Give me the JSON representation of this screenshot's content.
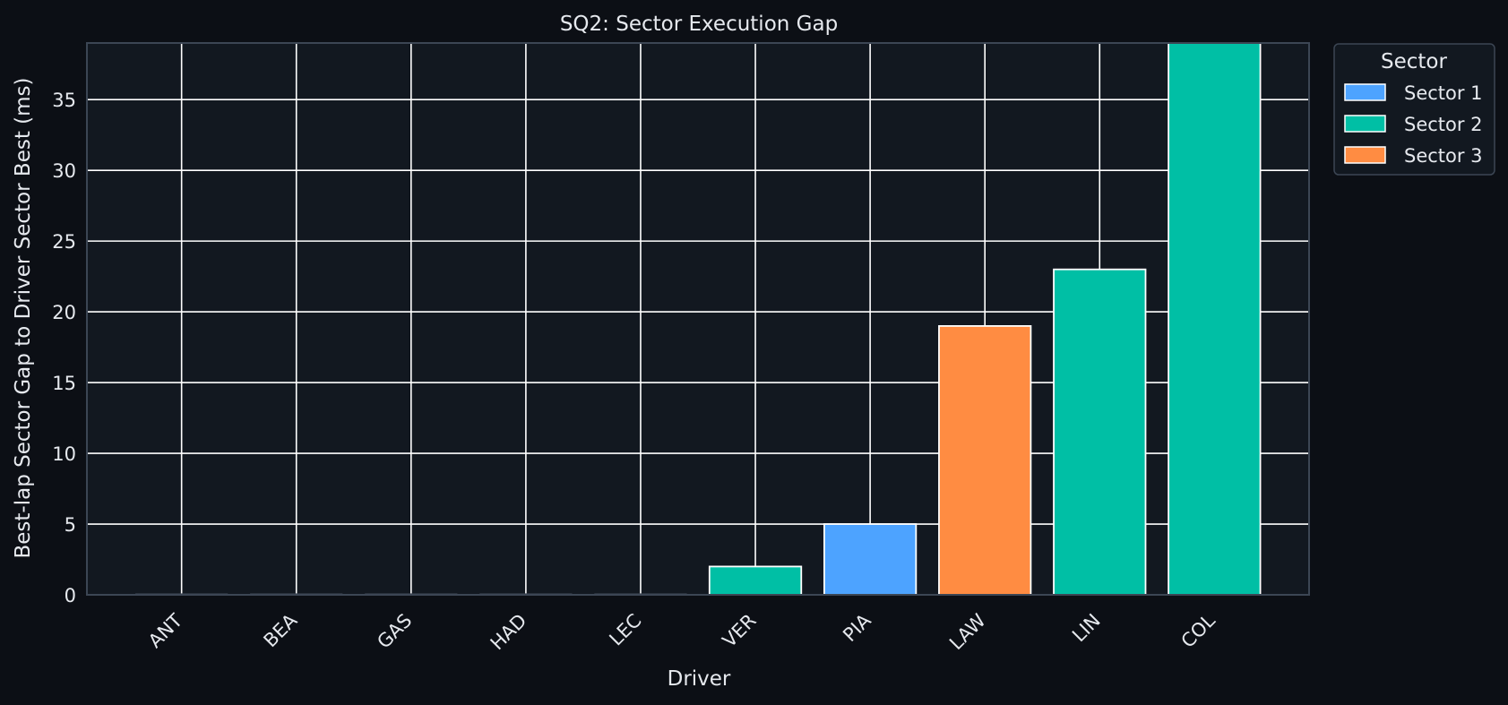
{
  "chart_data": {
    "type": "bar",
    "title": "SQ2: Sector Execution Gap",
    "xlabel": "Driver",
    "ylabel": "Best-lap Sector Gap to Driver Sector Best (ms)",
    "categories": [
      "ANT",
      "BEA",
      "GAS",
      "HAD",
      "LEC",
      "VER",
      "PIA",
      "LAW",
      "LIN",
      "COL"
    ],
    "values": [
      0,
      0,
      0,
      0,
      0,
      2,
      5,
      19,
      23,
      39
    ],
    "bar_sector": [
      null,
      null,
      null,
      null,
      null,
      "Sector 2",
      "Sector 1",
      "Sector 3",
      "Sector 2",
      "Sector 2"
    ],
    "ylim": [
      0,
      39
    ],
    "yticks": [
      0,
      5,
      10,
      15,
      20,
      25,
      30,
      35
    ],
    "grid": true,
    "legend": {
      "title": "Sector",
      "placement": "outside-top-right",
      "entries": [
        {
          "name": "Sector 1",
          "color": "#4da3ff"
        },
        {
          "name": "Sector 2",
          "color": "#00bfa5"
        },
        {
          "name": "Sector 3",
          "color": "#ff8c42"
        }
      ]
    },
    "colors": {
      "background": "#0c0f15",
      "plot_background": "#121820",
      "grid": "#ffffff",
      "axes_edge": "#3c4654",
      "text": "#e6e9ee"
    }
  }
}
